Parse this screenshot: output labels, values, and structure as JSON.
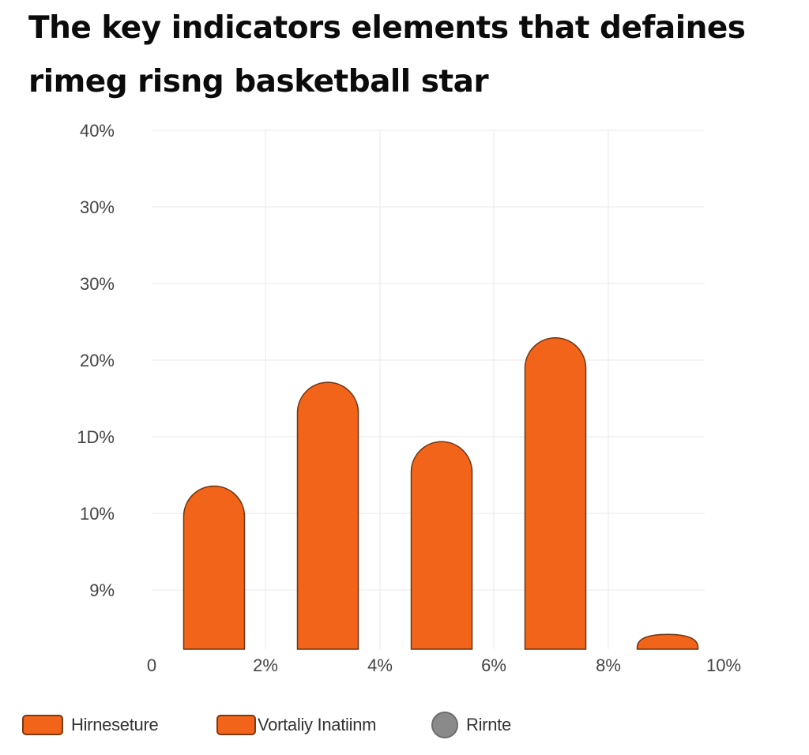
{
  "title_lines": [
    "The key indicators elements that defaines",
    "rimeg risng basketball star"
  ],
  "chart_data": {
    "type": "bar",
    "title": "The key indicators elements that defaines rimeg risng basketball star",
    "xlabel": "",
    "ylabel": "",
    "x_ticks": [
      "0",
      "2%",
      "4%",
      "6%",
      "8%",
      "10%"
    ],
    "y_ticks": [
      "40%",
      "30%",
      "30%",
      "20%",
      "1D%",
      "10%",
      "9%"
    ],
    "categories": [
      "1%",
      "3%",
      "5%",
      "7%",
      "9%"
    ],
    "values": [
      22,
      36,
      28,
      42,
      2
    ],
    "ylim": [
      0,
      70
    ],
    "grid": true,
    "legend_position": "bottom",
    "legend": [
      {
        "label": "Hirneseture",
        "marker": "rounded-rect",
        "color": "#f26419"
      },
      {
        "label": "Vortaliy Inatiinm",
        "marker": "pin-rect",
        "color": "#f26419"
      },
      {
        "label": "Rirnte",
        "marker": "circle",
        "color": "#8a8a8a"
      }
    ],
    "colors": {
      "bar": "#f26419",
      "bar_stroke": "#6b3414",
      "grid": "#e8e8e8",
      "tick_text": "#444444"
    }
  }
}
